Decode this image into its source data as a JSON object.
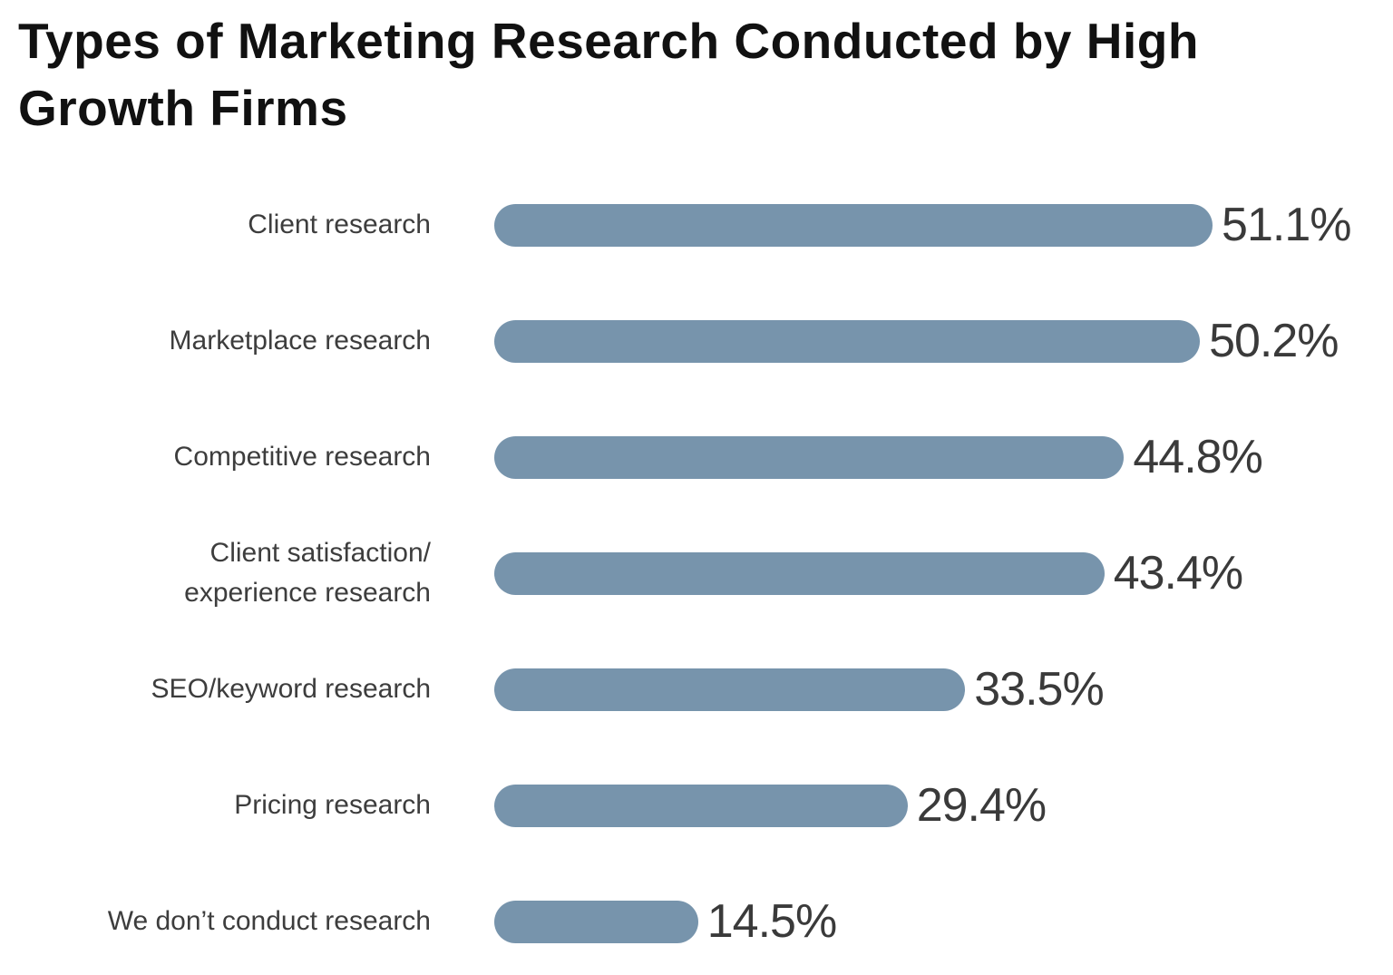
{
  "colors": {
    "bar": "#7794ac",
    "title": "#111111",
    "label": "#3d3d3d",
    "value": "#3a3a3a",
    "background": "#ffffff"
  },
  "chart_data": {
    "type": "bar",
    "orientation": "horizontal",
    "title": "Types of Marketing Research Conducted by High Growth Firms",
    "title_lines": [
      "Types of Marketing Research Conducted by High",
      "Growth Firms"
    ],
    "categories": [
      "Client research",
      "Marketplace research",
      "Competitive research",
      "Client satisfaction/ experience research",
      "SEO/keyword research",
      "Pricing research",
      "We don’t conduct research"
    ],
    "category_label_lines": [
      [
        "Client research"
      ],
      [
        "Marketplace research"
      ],
      [
        "Competitive research"
      ],
      [
        "Client satisfaction/",
        "experience research"
      ],
      [
        "SEO/keyword research"
      ],
      [
        "Pricing research"
      ],
      [
        "We don’t conduct research"
      ]
    ],
    "values": [
      51.1,
      50.2,
      44.8,
      43.4,
      33.5,
      29.4,
      14.5
    ],
    "value_labels": [
      "51.1%",
      "50.2%",
      "44.8%",
      "43.4%",
      "33.5%",
      "29.4%",
      "14.5%"
    ],
    "xlim": [
      0,
      55
    ],
    "grid": false,
    "legend": false,
    "bar_color": "#7794ac"
  }
}
